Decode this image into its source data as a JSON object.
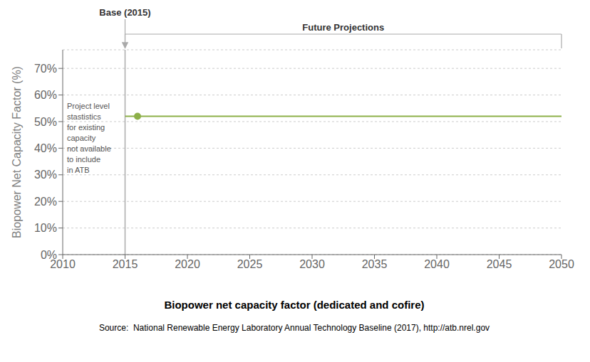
{
  "chart_data": {
    "type": "line",
    "title": "Biopower net capacity factor (dedicated and cofire)",
    "subtitle": "Source:  National Renewable Energy Laboratory Annual Technology Baseline (2017), http://atb.nrel.gov",
    "ylabel": "Biopower Net Capacity Factor (%)",
    "xlim": [
      2010,
      2050
    ],
    "xticks": [
      2010,
      2015,
      2020,
      2025,
      2030,
      2035,
      2040,
      2045,
      2050
    ],
    "ylim": [
      0,
      77
    ],
    "yticks": [
      {
        "value": 0,
        "label": "0%"
      },
      {
        "value": 10,
        "label": "10%"
      },
      {
        "value": 20,
        "label": "20%"
      },
      {
        "value": 30,
        "label": "30%"
      },
      {
        "value": 40,
        "label": "40%"
      },
      {
        "value": 50,
        "label": "50%"
      },
      {
        "value": 60,
        "label": "60%"
      },
      {
        "value": 70,
        "label": "70%"
      }
    ],
    "grid": true,
    "vertical_line": 2015,
    "annotations": [
      {
        "text": "Base (2015)",
        "x": 2015
      },
      {
        "text": "Future Projections",
        "x": [
          2015,
          2050
        ]
      },
      {
        "text": "Project level\nstastistics\nfor existing\ncapacity\nnot available\nto include\nin ATB"
      }
    ],
    "series": [
      {
        "type": "line",
        "color": "#8db049",
        "x": [
          2015,
          2050
        ],
        "values": [
          52,
          52
        ]
      },
      {
        "type": "scatter",
        "marker": "circle",
        "color": "#8db049",
        "x": [
          2016
        ],
        "values": [
          52
        ]
      }
    ]
  }
}
